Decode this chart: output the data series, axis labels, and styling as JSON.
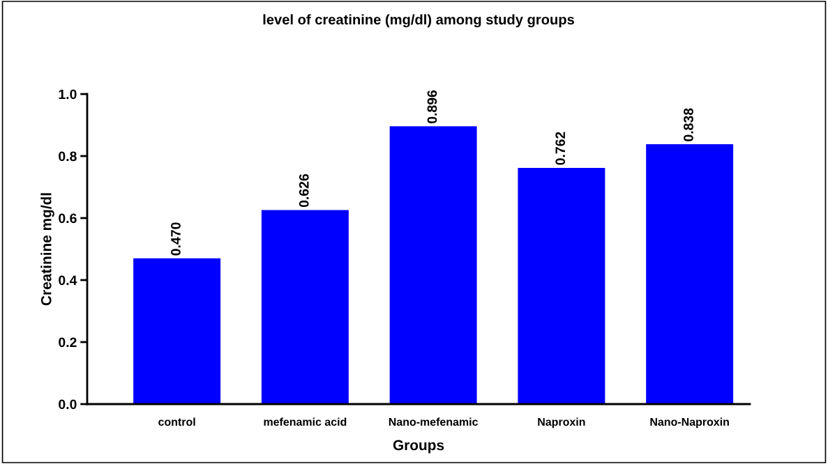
{
  "chart_data": {
    "type": "bar",
    "title": "level of creatinine (mg/dl) among study groups",
    "xlabel": "Groups",
    "ylabel": "Creatinine mg/dl",
    "categories": [
      "control",
      "mefenamic acid",
      "Nano-mefenamic",
      "Naproxin",
      "Nano-Naproxin"
    ],
    "values": [
      0.47,
      0.626,
      0.896,
      0.762,
      0.838
    ],
    "value_labels": [
      "0.470",
      "0.626",
      "0.896",
      "0.762",
      "0.838"
    ],
    "color": "#0000ff",
    "ylim": [
      0,
      1.0
    ],
    "yticks": [
      {
        "value": 0,
        "label": "0.0"
      },
      {
        "value": 0.2,
        "label": "0.2"
      },
      {
        "value": 0.4,
        "label": "0.4"
      },
      {
        "value": 0.6,
        "label": "0.6"
      },
      {
        "value": 0.8,
        "label": "0.8"
      },
      {
        "value": 1.0,
        "label": "1.0"
      }
    ],
    "grid": false,
    "legend": false
  }
}
